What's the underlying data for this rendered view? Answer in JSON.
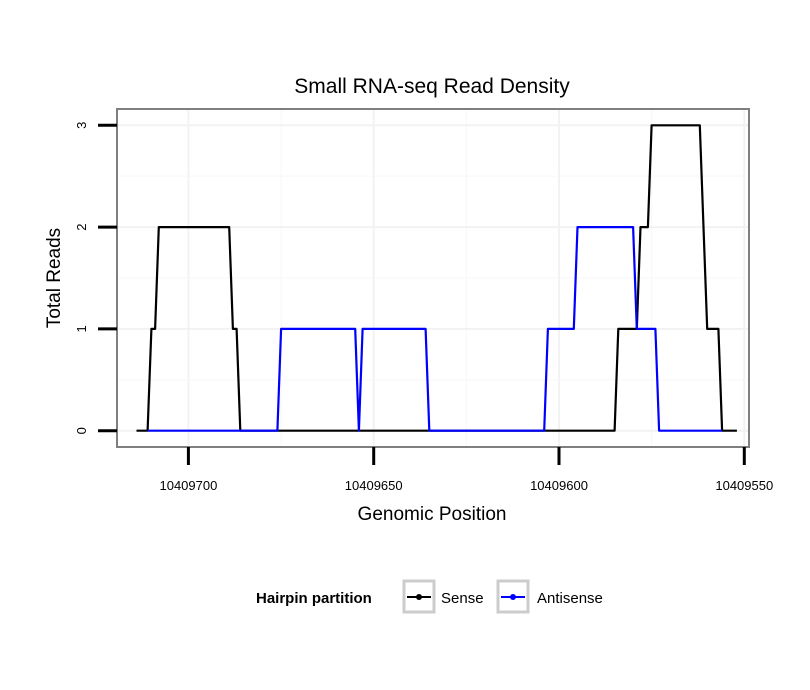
{
  "chart_data": {
    "type": "line",
    "title": "Small RNA-seq Read Density",
    "xlabel": "Genomic Position",
    "ylabel": "Total Reads",
    "xlim": [
      10409719,
      10409549
    ],
    "ylim": [
      -0.15,
      3.15
    ],
    "x_reversed": true,
    "xticks": [
      10409700,
      10409650,
      10409600,
      10409550
    ],
    "xtick_labels": [
      "10409700",
      "10409650",
      "10409600",
      "10409550"
    ],
    "yticks": [
      0,
      1,
      2,
      3
    ],
    "ytick_labels": [
      "0",
      "1",
      "2",
      "3"
    ],
    "grid": true,
    "legend": {
      "title": "Hairpin partition",
      "position": "bottom",
      "entries": [
        "Sense",
        "Antisense"
      ]
    },
    "series": [
      {
        "name": "Sense",
        "color": "#000000",
        "points": [
          [
            10409714,
            0
          ],
          [
            10409711,
            0
          ],
          [
            10409710,
            1
          ],
          [
            10409709,
            1
          ],
          [
            10409708,
            2
          ],
          [
            10409689,
            2
          ],
          [
            10409688,
            1
          ],
          [
            10409687,
            1
          ],
          [
            10409686,
            0
          ],
          [
            10409585,
            0
          ],
          [
            10409584,
            1
          ],
          [
            10409579,
            1
          ],
          [
            10409578,
            2
          ],
          [
            10409576,
            2
          ],
          [
            10409575,
            3
          ],
          [
            10409562,
            3
          ],
          [
            10409560,
            1
          ],
          [
            10409557,
            1
          ],
          [
            10409556,
            0
          ],
          [
            10409552,
            0
          ]
        ]
      },
      {
        "name": "Antisense",
        "color": "#0000ff",
        "points": [
          [
            10409711,
            0
          ],
          [
            10409676,
            0
          ],
          [
            10409675,
            1
          ],
          [
            10409655,
            1
          ],
          [
            10409654,
            0
          ],
          [
            10409653,
            1
          ],
          [
            10409636,
            1
          ],
          [
            10409635,
            0
          ],
          [
            10409604,
            0
          ],
          [
            10409603,
            1
          ],
          [
            10409596,
            1
          ],
          [
            10409595,
            2
          ],
          [
            10409580,
            2
          ],
          [
            10409579,
            1
          ],
          [
            10409574,
            1
          ],
          [
            10409573,
            0
          ],
          [
            10409556,
            0
          ]
        ]
      }
    ]
  }
}
